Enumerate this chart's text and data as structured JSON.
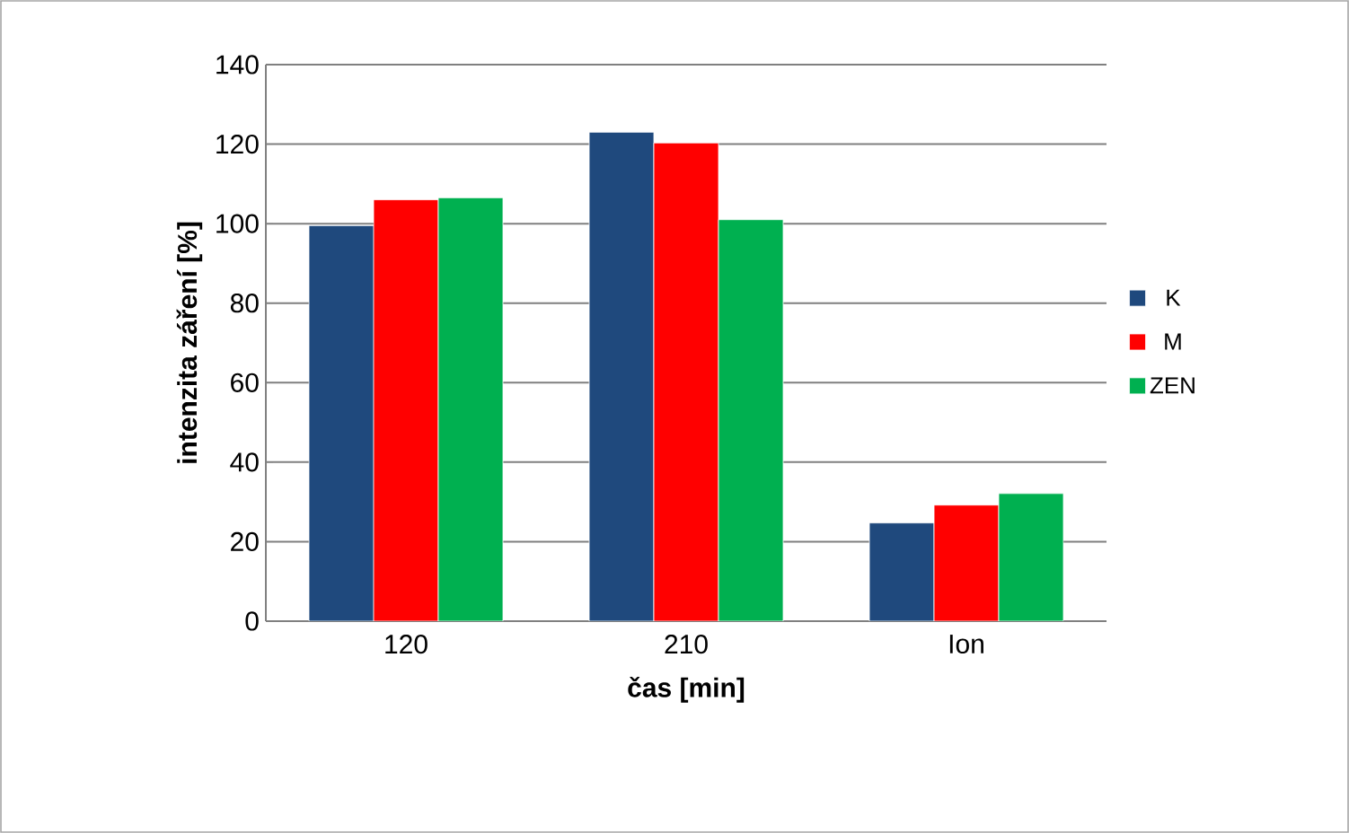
{
  "chart_data": {
    "type": "bar",
    "xlabel": "čas [min]",
    "ylabel": "intenzita záření [%]",
    "categories": [
      "120",
      "210",
      "Ion"
    ],
    "series": [
      {
        "name": "K",
        "color": "#1f497d",
        "values": [
          99.5,
          123,
          24.7
        ]
      },
      {
        "name": "M",
        "color": "#ff0000",
        "values": [
          106,
          120.3,
          29.2
        ]
      },
      {
        "name": "ZEN",
        "color": "#00b050",
        "values": [
          106.5,
          101,
          32.1
        ]
      }
    ],
    "ylim": [
      0,
      140
    ],
    "yticks": [
      0,
      20,
      40,
      60,
      80,
      100,
      120,
      140
    ],
    "grid": "y",
    "legend": "right"
  }
}
